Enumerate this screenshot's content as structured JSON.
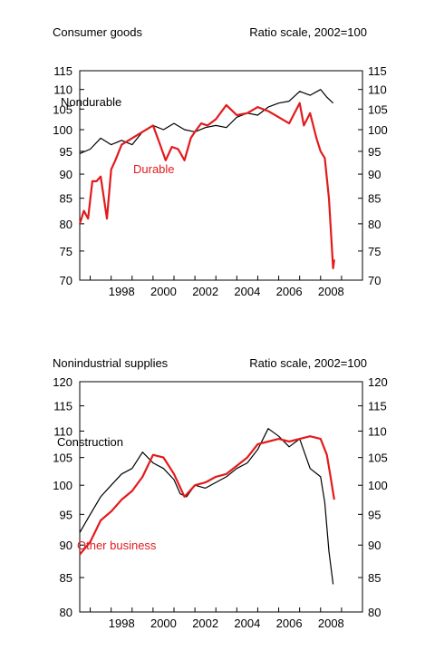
{
  "chart_data": [
    {
      "type": "line",
      "title": "Consumer goods",
      "subtitle": "Ratio scale, 2002=100",
      "scale": "log",
      "ylim": [
        70,
        115
      ],
      "yticks": [
        70,
        75,
        80,
        85,
        90,
        95,
        100,
        105,
        110,
        115
      ],
      "xlim": [
        1996.5,
        2010.0
      ],
      "xticks": [
        1998,
        2000,
        2002,
        2004,
        2006,
        2008
      ],
      "colors": {
        "Nondurable": "#000000",
        "Durable": "#e31a1c"
      },
      "series": [
        {
          "name": "Nondurable",
          "label": "Nondurable",
          "x": [
            1996.5,
            1997.0,
            1997.5,
            1998.0,
            1998.5,
            1999.0,
            1999.5,
            2000.0,
            2000.5,
            2001.0,
            2001.5,
            2002.0,
            2002.5,
            2003.0,
            2003.5,
            2004.0,
            2004.5,
            2005.0,
            2005.5,
            2006.0,
            2006.5,
            2007.0,
            2007.5,
            2008.0,
            2008.3,
            2008.6
          ],
          "y": [
            94.5,
            95.5,
            98,
            96.5,
            97.5,
            96.5,
            99.5,
            101,
            100,
            101.5,
            100,
            99.5,
            100.5,
            101,
            100.5,
            103,
            104,
            103.5,
            105.5,
            106.5,
            107,
            109.5,
            108.5,
            110,
            108,
            106.5
          ]
        },
        {
          "name": "Durable",
          "label": "Durable",
          "x": [
            1996.5,
            1996.7,
            1996.9,
            1997.1,
            1997.3,
            1997.5,
            1997.8,
            1998.0,
            1998.2,
            1998.5,
            1999.0,
            1999.5,
            2000.0,
            2000.3,
            2000.6,
            2000.9,
            2001.2,
            2001.5,
            2001.8,
            2002.0,
            2002.3,
            2002.6,
            2003.0,
            2003.5,
            2004.0,
            2004.5,
            2005.0,
            2005.5,
            2006.0,
            2006.5,
            2007.0,
            2007.2,
            2007.5,
            2007.8,
            2008.0,
            2008.2,
            2008.4,
            2008.6,
            2008.65
          ],
          "y": [
            80,
            82.5,
            81,
            88.5,
            88.5,
            89.5,
            81,
            91,
            93,
            96.5,
            98,
            99.5,
            101,
            97,
            93,
            96,
            95.5,
            93,
            98,
            99.5,
            101.5,
            101,
            102.5,
            106,
            103.5,
            104,
            105.5,
            104.5,
            103,
            101.5,
            106.5,
            101,
            104,
            98,
            95,
            93.5,
            85,
            72,
            73.5
          ]
        }
      ]
    },
    {
      "type": "line",
      "title": "Nonindustrial supplies",
      "subtitle": "Ratio scale, 2002=100",
      "scale": "log",
      "ylim": [
        80,
        120
      ],
      "yticks": [
        80,
        85,
        90,
        95,
        100,
        105,
        110,
        115,
        120
      ],
      "xlim": [
        1996.5,
        2010.0
      ],
      "xticks": [
        1998,
        2000,
        2002,
        2004,
        2006,
        2008
      ],
      "colors": {
        "Construction": "#000000",
        "Other business": "#e31a1c"
      },
      "series": [
        {
          "name": "Construction",
          "label": "Construction",
          "x": [
            1996.5,
            1997.0,
            1997.5,
            1998.0,
            1998.5,
            1999.0,
            1999.5,
            2000.0,
            2000.5,
            2001.0,
            2001.3,
            2001.6,
            2002.0,
            2002.5,
            2003.0,
            2003.5,
            2004.0,
            2004.5,
            2005.0,
            2005.5,
            2006.0,
            2006.5,
            2007.0,
            2007.5,
            2008.0,
            2008.2,
            2008.4,
            2008.6
          ],
          "y": [
            92,
            95,
            98,
            100,
            102,
            103,
            106,
            104,
            103,
            101,
            98.5,
            98,
            100,
            99.5,
            100.5,
            101.5,
            103,
            104,
            106.5,
            110.5,
            109,
            107,
            108.5,
            103,
            101.5,
            97,
            89,
            84
          ]
        },
        {
          "name": "Other business",
          "label": "Other business",
          "x": [
            1996.5,
            1997.0,
            1997.5,
            1998.0,
            1998.5,
            1999.0,
            1999.5,
            2000.0,
            2000.5,
            2001.0,
            2001.5,
            2002.0,
            2002.5,
            2003.0,
            2003.5,
            2004.0,
            2004.5,
            2005.0,
            2005.5,
            2006.0,
            2006.5,
            2007.0,
            2007.5,
            2008.0,
            2008.3,
            2008.5,
            2008.65
          ],
          "y": [
            88.5,
            90.5,
            94,
            95.5,
            97.5,
            99,
            101.5,
            105.5,
            105,
            102,
            98,
            100,
            100.5,
            101.5,
            102,
            103.5,
            105,
            107.5,
            108,
            108.5,
            108,
            108.5,
            109,
            108.5,
            105.5,
            101,
            97.5
          ]
        }
      ]
    }
  ]
}
